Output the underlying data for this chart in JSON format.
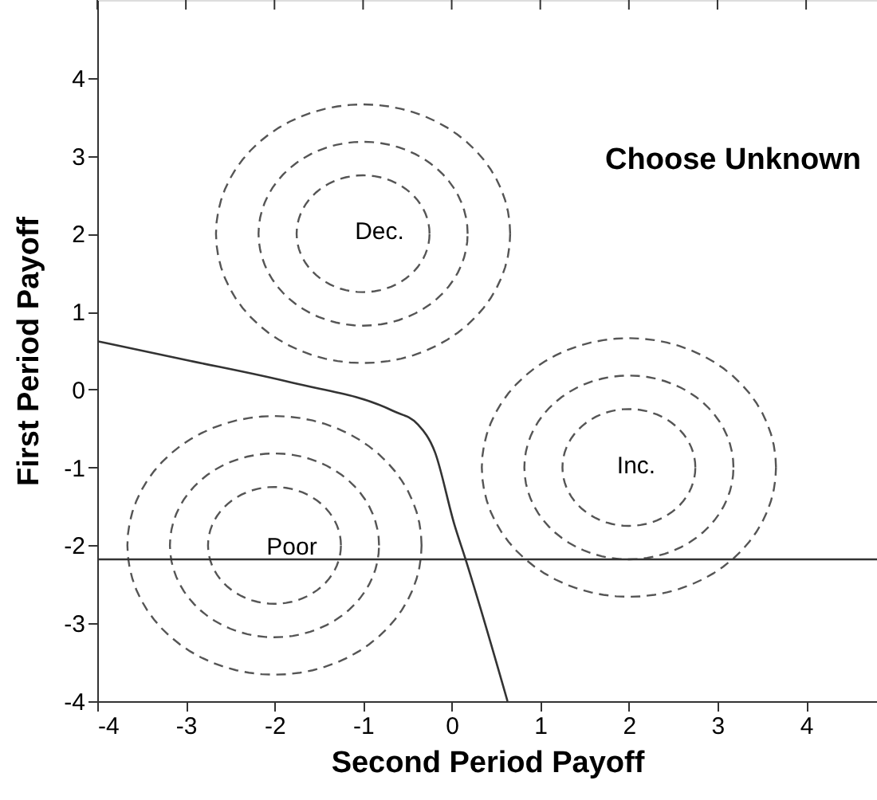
{
  "chart_data": {
    "type": "line",
    "xlabel": "Second Period Payoff",
    "ylabel": "First Period Payoff",
    "xlim": [
      -4,
      4.8
    ],
    "ylim": [
      -4,
      5
    ],
    "xticks": [
      -4,
      -3,
      -2,
      -1,
      0,
      1,
      2,
      3,
      4
    ],
    "yticks": [
      -4,
      -3,
      -2,
      -1,
      0,
      1,
      2,
      3,
      4
    ],
    "marker": "none",
    "series": [
      {
        "color": "#333333",
        "line_style": "solid",
        "x": [
          -4,
          -3,
          -1.81,
          -0.67,
          -0.38,
          -0.19,
          0.03,
          0.16,
          0.63
        ],
        "values": [
          0.62,
          0.38,
          0.09,
          -0.27,
          -0.45,
          -0.8,
          -1.73,
          -2.19,
          -4
        ]
      }
    ],
    "ref_lines": [
      {
        "axis": "y",
        "value": -2.18,
        "color": "#333333",
        "line_style": "solid"
      }
    ],
    "annotations": [
      "Choose Unknown",
      "Dec.",
      "Inc.",
      "Poor"
    ]
  }
}
